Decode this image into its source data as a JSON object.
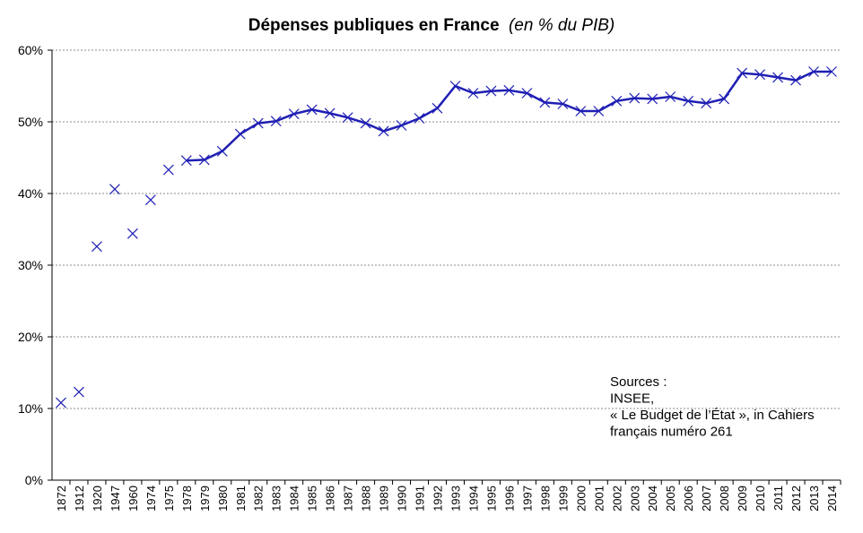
{
  "chart_data": {
    "type": "line",
    "title": "Dépenses publiques en France",
    "subtitle": "(en % du PIB)",
    "xlabel": "",
    "ylabel": "",
    "ylim": [
      0,
      60
    ],
    "y_ticks": [
      "0%",
      "10%",
      "20%",
      "30%",
      "40%",
      "50%",
      "60%"
    ],
    "grid": true,
    "legend": "none",
    "categories": [
      "1872",
      "1912",
      "1920",
      "1947",
      "1960",
      "1974",
      "1975",
      "1978",
      "1979",
      "1980",
      "1981",
      "1982",
      "1983",
      "1984",
      "1985",
      "1986",
      "1987",
      "1988",
      "1989",
      "1990",
      "1991",
      "1992",
      "1993",
      "1994",
      "1995",
      "1996",
      "1997",
      "1998",
      "1999",
      "2000",
      "2001",
      "2002",
      "2003",
      "2004",
      "2005",
      "2006",
      "2007",
      "2008",
      "2009",
      "2010",
      "2011",
      "2012",
      "2013",
      "2014"
    ],
    "series": [
      {
        "values": [
          10.8,
          12.3,
          32.6,
          40.6,
          34.4,
          39.1,
          43.3,
          44.6,
          44.7,
          45.9,
          48.3,
          49.8,
          50.1,
          51.1,
          51.7,
          51.2,
          50.6,
          49.8,
          48.7,
          49.5,
          50.5,
          51.9,
          55.0,
          54.0,
          54.3,
          54.4,
          54.0,
          52.7,
          52.5,
          51.5,
          51.5,
          52.9,
          53.3,
          53.2,
          53.5,
          52.9,
          52.6,
          53.2,
          56.8,
          56.6,
          56.2,
          55.8,
          57.0,
          57.0
        ],
        "color": "#1f1fb4",
        "line_from": "1978"
      }
    ],
    "annotation": {
      "lines": [
        "Sources :",
        "INSEE,",
        "« Le Budget de l’État », in Cahiers",
        "français numéro 261"
      ]
    }
  }
}
